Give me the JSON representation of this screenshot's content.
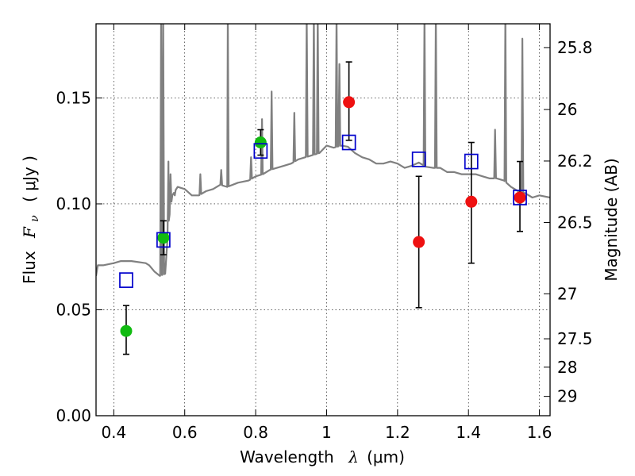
{
  "chart_data": {
    "type": "scatter",
    "xlabel_text": "Wavelength",
    "xlabel_symbol": "λ",
    "xlabel_unit": "(μm)",
    "ylabel_text": "Flux",
    "ylabel_symbol": "F",
    "ylabel_subscript": "ν",
    "ylabel_unit": "( μJy )",
    "y2label": "Magnitude (AB)",
    "xlim": [
      0.35,
      1.63
    ],
    "ylim": [
      0.0,
      0.185
    ],
    "grid": true,
    "x_ticks": [
      {
        "value": 0.4,
        "label": "0.4"
      },
      {
        "value": 0.6,
        "label": "0.6"
      },
      {
        "value": 0.8,
        "label": "0.8"
      },
      {
        "value": 1.0,
        "label": "1"
      },
      {
        "value": 1.2,
        "label": "1.2"
      },
      {
        "value": 1.4,
        "label": "1.4"
      },
      {
        "value": 1.6,
        "label": "1.6"
      }
    ],
    "y_ticks": [
      {
        "value": 0.0,
        "label": "0.00"
      },
      {
        "value": 0.05,
        "label": "0.05"
      },
      {
        "value": 0.1,
        "label": "0.10"
      },
      {
        "value": 0.15,
        "label": "0.15"
      }
    ],
    "mag_ticks": [
      {
        "mag": 25.8,
        "label": "25.8"
      },
      {
        "mag": 26.0,
        "label": "26"
      },
      {
        "mag": 26.2,
        "label": "26.2"
      },
      {
        "mag": 26.5,
        "label": "26.5"
      },
      {
        "mag": 27.0,
        "label": "27"
      },
      {
        "mag": 27.5,
        "label": "27.5"
      },
      {
        "mag": 28.0,
        "label": "28"
      },
      {
        "mag": 29.0,
        "label": "29"
      }
    ],
    "series": [
      {
        "kind": "green-points",
        "color": "#11bb11",
        "points": [
          {
            "x": 0.435,
            "y": 0.04,
            "err_low": 0.029,
            "err_high": 0.052
          },
          {
            "x": 0.54,
            "y": 0.084,
            "err_low": 0.076,
            "err_high": 0.092
          },
          {
            "x": 0.814,
            "y": 0.129,
            "err_low": 0.123,
            "err_high": 0.135
          }
        ]
      },
      {
        "kind": "red-points",
        "color": "#ee1111",
        "points": [
          {
            "x": 1.063,
            "y": 0.148,
            "err_low": 0.13,
            "err_high": 0.167
          },
          {
            "x": 1.26,
            "y": 0.082,
            "err_low": 0.051,
            "err_high": 0.113
          },
          {
            "x": 1.408,
            "y": 0.101,
            "err_low": 0.072,
            "err_high": 0.129
          },
          {
            "x": 1.545,
            "y": 0.103,
            "err_low": 0.087,
            "err_high": 0.12
          }
        ]
      },
      {
        "kind": "model-squares",
        "color": "#0000cc",
        "points": [
          {
            "x": 0.435,
            "y": 0.064
          },
          {
            "x": 0.54,
            "y": 0.083
          },
          {
            "x": 0.814,
            "y": 0.125
          },
          {
            "x": 1.063,
            "y": 0.129
          },
          {
            "x": 1.26,
            "y": 0.121
          },
          {
            "x": 1.408,
            "y": 0.12
          },
          {
            "x": 1.545,
            "y": 0.103
          }
        ]
      }
    ],
    "spectrum": {
      "color": "#808080",
      "continuum": [
        [
          0.35,
          0.066
        ],
        [
          0.355,
          0.071
        ],
        [
          0.37,
          0.071
        ],
        [
          0.4,
          0.072
        ],
        [
          0.42,
          0.073
        ],
        [
          0.45,
          0.073
        ],
        [
          0.49,
          0.072
        ],
        [
          0.5,
          0.071
        ],
        [
          0.515,
          0.068
        ],
        [
          0.53,
          0.066
        ],
        [
          0.545,
          0.067
        ],
        [
          0.555,
          0.092
        ],
        [
          0.565,
          0.104
        ],
        [
          0.58,
          0.108
        ],
        [
          0.6,
          0.107
        ],
        [
          0.62,
          0.104
        ],
        [
          0.64,
          0.104
        ],
        [
          0.66,
          0.106
        ],
        [
          0.68,
          0.107
        ],
        [
          0.7,
          0.109
        ],
        [
          0.72,
          0.108
        ],
        [
          0.75,
          0.11
        ],
        [
          0.78,
          0.111
        ],
        [
          0.8,
          0.113
        ],
        [
          0.82,
          0.114
        ],
        [
          0.84,
          0.116
        ],
        [
          0.86,
          0.117
        ],
        [
          0.88,
          0.118
        ],
        [
          0.9,
          0.119
        ],
        [
          0.92,
          0.121
        ],
        [
          0.94,
          0.122
        ],
        [
          0.96,
          0.123
        ],
        [
          0.98,
          0.124
        ],
        [
          1.0,
          0.1275
        ],
        [
          1.02,
          0.1265
        ],
        [
          1.04,
          0.1275
        ],
        [
          1.06,
          0.127
        ],
        [
          1.08,
          0.124
        ],
        [
          1.1,
          0.122
        ],
        [
          1.12,
          0.121
        ],
        [
          1.14,
          0.119
        ],
        [
          1.16,
          0.119
        ],
        [
          1.18,
          0.12
        ],
        [
          1.2,
          0.119
        ],
        [
          1.22,
          0.117
        ],
        [
          1.24,
          0.118
        ],
        [
          1.26,
          0.1195
        ],
        [
          1.28,
          0.1175
        ],
        [
          1.3,
          0.117
        ],
        [
          1.32,
          0.117
        ],
        [
          1.34,
          0.115
        ],
        [
          1.36,
          0.115
        ],
        [
          1.38,
          0.114
        ],
        [
          1.4,
          0.114
        ],
        [
          1.42,
          0.114
        ],
        [
          1.44,
          0.113
        ],
        [
          1.46,
          0.112
        ],
        [
          1.48,
          0.112
        ],
        [
          1.5,
          0.111
        ],
        [
          1.52,
          0.108
        ],
        [
          1.54,
          0.106
        ],
        [
          1.56,
          0.105
        ],
        [
          1.58,
          0.103
        ],
        [
          1.6,
          0.104
        ],
        [
          1.63,
          0.103
        ]
      ],
      "emission_lines": [
        {
          "x": 0.5334,
          "peak": 0.19
        },
        {
          "x": 0.5394,
          "peak": 0.19
        },
        {
          "x": 0.554,
          "peak": 0.12
        },
        {
          "x": 0.56,
          "peak": 0.114
        },
        {
          "x": 0.572,
          "peak": 0.104
        },
        {
          "x": 0.644,
          "peak": 0.114
        },
        {
          "x": 0.703,
          "peak": 0.116
        },
        {
          "x": 0.7215,
          "peak": 0.19
        },
        {
          "x": 0.787,
          "peak": 0.122
        },
        {
          "x": 0.818,
          "peak": 0.14
        },
        {
          "x": 0.845,
          "peak": 0.153
        },
        {
          "x": 0.909,
          "peak": 0.143
        },
        {
          "x": 0.944,
          "peak": 0.19
        },
        {
          "x": 0.964,
          "peak": 0.19
        },
        {
          "x": 0.975,
          "peak": 0.19
        },
        {
          "x": 1.028,
          "peak": 0.19
        },
        {
          "x": 1.036,
          "peak": 0.166
        },
        {
          "x": 1.276,
          "peak": 0.19
        },
        {
          "x": 1.308,
          "peak": 0.19
        },
        {
          "x": 1.475,
          "peak": 0.135
        },
        {
          "x": 1.504,
          "peak": 0.19
        },
        {
          "x": 1.552,
          "peak": 0.178
        }
      ]
    }
  }
}
